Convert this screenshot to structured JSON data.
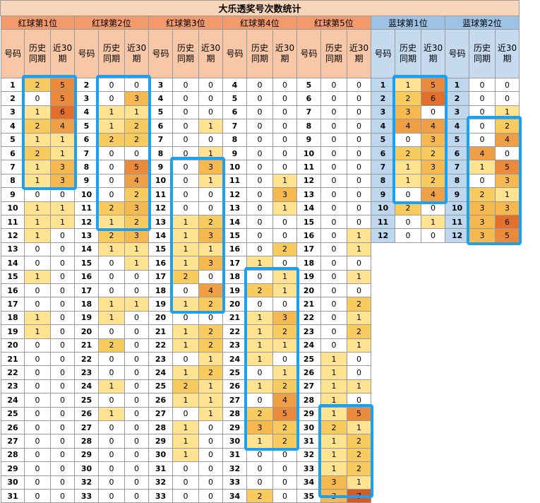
{
  "title": "大乐透奖号次数统计",
  "sub_headers": [
    "号码",
    "历史\n同期",
    "近30\n期"
  ],
  "colors": {
    "red_group_header": "#f49a6a",
    "red_sub_header": "#f8c7a8",
    "blue_group_header": "#9cc2e5",
    "blue_sub_header": "#c5d9ef",
    "blue_number_cell": "#bdd7ee",
    "heat_1": "#ffe391",
    "heat_2": "#f8cb5f",
    "heat_3": "#f5b94f",
    "heat_4": "#ef9f45",
    "heat_5": "#ea8a3a",
    "heat_6": "#e26f2b",
    "heat_7": "#d85a22",
    "highlight_box": "#1aa1f4"
  },
  "groups": [
    {
      "name": "红球第1位",
      "type": "red",
      "rows": [
        [
          "1",
          "2",
          "5"
        ],
        [
          "2",
          "0",
          "5"
        ],
        [
          "3",
          "1",
          "6"
        ],
        [
          "4",
          "2",
          "4"
        ],
        [
          "5",
          "1",
          "1"
        ],
        [
          "6",
          "2",
          "1"
        ],
        [
          "7",
          "1",
          "3"
        ],
        [
          "8",
          "1",
          "3"
        ],
        [
          "9",
          "0",
          "0"
        ],
        [
          "10",
          "1",
          "1"
        ],
        [
          "11",
          "1",
          "1"
        ],
        [
          "12",
          "1",
          "0"
        ],
        [
          "13",
          "0",
          "0"
        ],
        [
          "14",
          "0",
          "0"
        ],
        [
          "15",
          "1",
          "0"
        ],
        [
          "16",
          "0",
          "0"
        ],
        [
          "17",
          "0",
          "0"
        ],
        [
          "18",
          "1",
          "0"
        ],
        [
          "19",
          "1",
          "0"
        ],
        [
          "20",
          "0",
          "0"
        ],
        [
          "21",
          "0",
          "0"
        ],
        [
          "22",
          "0",
          "0"
        ],
        [
          "23",
          "0",
          "0"
        ],
        [
          "24",
          "0",
          "0"
        ],
        [
          "25",
          "0",
          "0"
        ],
        [
          "26",
          "0",
          "0"
        ],
        [
          "27",
          "0",
          "0"
        ],
        [
          "28",
          "0",
          "0"
        ],
        [
          "29",
          "0",
          "0"
        ],
        [
          "30",
          "0",
          "0"
        ],
        [
          "31",
          "0",
          "0"
        ]
      ]
    },
    {
      "name": "红球第2位",
      "type": "red",
      "rows": [
        [
          "2",
          "0",
          "0"
        ],
        [
          "3",
          "0",
          "3"
        ],
        [
          "4",
          "1",
          "1"
        ],
        [
          "5",
          "1",
          "2"
        ],
        [
          "6",
          "2",
          "2"
        ],
        [
          "7",
          "0",
          "0"
        ],
        [
          "8",
          "0",
          "5"
        ],
        [
          "9",
          "0",
          "4"
        ],
        [
          "10",
          "0",
          "2"
        ],
        [
          "11",
          "2",
          "3"
        ],
        [
          "12",
          "1",
          "2"
        ],
        [
          "13",
          "2",
          "3"
        ],
        [
          "14",
          "1",
          "1"
        ],
        [
          "15",
          "0",
          "1"
        ],
        [
          "16",
          "0",
          "0"
        ],
        [
          "17",
          "0",
          "0"
        ],
        [
          "18",
          "1",
          "1"
        ],
        [
          "19",
          "1",
          "0"
        ],
        [
          "20",
          "0",
          "0"
        ],
        [
          "21",
          "2",
          "0"
        ],
        [
          "22",
          "0",
          "0"
        ],
        [
          "23",
          "0",
          "0"
        ],
        [
          "24",
          "1",
          "0"
        ],
        [
          "25",
          "0",
          "0"
        ],
        [
          "26",
          "1",
          "0"
        ],
        [
          "27",
          "0",
          "0"
        ],
        [
          "28",
          "0",
          "0"
        ],
        [
          "29",
          "0",
          "0"
        ],
        [
          "30",
          "0",
          "0"
        ],
        [
          "32",
          "0",
          "0"
        ],
        [
          "33",
          "0",
          "0"
        ]
      ]
    },
    {
      "name": "红球第3位",
      "type": "red",
      "rows": [
        [
          "3",
          "0",
          "0"
        ],
        [
          "4",
          "0",
          "0"
        ],
        [
          "5",
          "0",
          "0"
        ],
        [
          "6",
          "0",
          "1"
        ],
        [
          "7",
          "0",
          "0"
        ],
        [
          "8",
          "0",
          "1"
        ],
        [
          "9",
          "0",
          "3"
        ],
        [
          "10",
          "0",
          "1"
        ],
        [
          "11",
          "0",
          "0"
        ],
        [
          "12",
          "0",
          "0"
        ],
        [
          "13",
          "1",
          "2"
        ],
        [
          "14",
          "1",
          "3"
        ],
        [
          "15",
          "1",
          "1"
        ],
        [
          "16",
          "1",
          "3"
        ],
        [
          "17",
          "2",
          "0"
        ],
        [
          "18",
          "0",
          "4"
        ],
        [
          "19",
          "1",
          "2"
        ],
        [
          "20",
          "0",
          "0"
        ],
        [
          "21",
          "1",
          "2"
        ],
        [
          "22",
          "1",
          "2"
        ],
        [
          "23",
          "0",
          "1"
        ],
        [
          "24",
          "1",
          "2"
        ],
        [
          "25",
          "2",
          "1"
        ],
        [
          "26",
          "1",
          "1"
        ],
        [
          "27",
          "0",
          "1"
        ],
        [
          "28",
          "1",
          "0"
        ],
        [
          "29",
          "1",
          "0"
        ],
        [
          "30",
          "1",
          "0"
        ],
        [
          "31",
          "0",
          "0"
        ],
        [
          "32",
          "0",
          "0"
        ],
        [
          "33",
          "0",
          "0"
        ]
      ]
    },
    {
      "name": "红球第4位",
      "type": "red",
      "rows": [
        [
          "4",
          "0",
          "0"
        ],
        [
          "5",
          "0",
          "0"
        ],
        [
          "6",
          "0",
          "0"
        ],
        [
          "7",
          "0",
          "0"
        ],
        [
          "8",
          "0",
          "0"
        ],
        [
          "9",
          "0",
          "0"
        ],
        [
          "10",
          "0",
          "0"
        ],
        [
          "11",
          "0",
          "1"
        ],
        [
          "12",
          "0",
          "3"
        ],
        [
          "13",
          "0",
          "1"
        ],
        [
          "14",
          "0",
          "0"
        ],
        [
          "15",
          "0",
          "0"
        ],
        [
          "16",
          "0",
          "2"
        ],
        [
          "17",
          "1",
          "0"
        ],
        [
          "18",
          "0",
          "1"
        ],
        [
          "19",
          "2",
          "1"
        ],
        [
          "20",
          "0",
          "0"
        ],
        [
          "21",
          "1",
          "3"
        ],
        [
          "22",
          "1",
          "2"
        ],
        [
          "23",
          "1",
          "1"
        ],
        [
          "24",
          "1",
          "0"
        ],
        [
          "25",
          "0",
          "1"
        ],
        [
          "26",
          "1",
          "2"
        ],
        [
          "27",
          "0",
          "4"
        ],
        [
          "28",
          "2",
          "5"
        ],
        [
          "29",
          "3",
          "2"
        ],
        [
          "30",
          "1",
          "2"
        ],
        [
          "31",
          "0",
          "0"
        ],
        [
          "32",
          "0",
          "0"
        ],
        [
          "33",
          "0",
          "0"
        ],
        [
          "34",
          "2",
          "0"
        ]
      ]
    },
    {
      "name": "红球第5位",
      "type": "red",
      "rows": [
        [
          "5",
          "0",
          "0"
        ],
        [
          "6",
          "0",
          "0"
        ],
        [
          "7",
          "0",
          "0"
        ],
        [
          "8",
          "0",
          "0"
        ],
        [
          "9",
          "0",
          "0"
        ],
        [
          "10",
          "0",
          "0"
        ],
        [
          "11",
          "0",
          "0"
        ],
        [
          "12",
          "0",
          "0"
        ],
        [
          "13",
          "0",
          "0"
        ],
        [
          "14",
          "0",
          "0"
        ],
        [
          "15",
          "0",
          "0"
        ],
        [
          "16",
          "0",
          "1"
        ],
        [
          "17",
          "0",
          "1"
        ],
        [
          "18",
          "0",
          "0"
        ],
        [
          "19",
          "0",
          "1"
        ],
        [
          "20",
          "0",
          "0"
        ],
        [
          "21",
          "0",
          "2"
        ],
        [
          "22",
          "0",
          "1"
        ],
        [
          "23",
          "0",
          "2"
        ],
        [
          "24",
          "0",
          "1"
        ],
        [
          "25",
          "1",
          "0"
        ],
        [
          "26",
          "1",
          "0"
        ],
        [
          "27",
          "1",
          "1"
        ],
        [
          "28",
          "1",
          "0"
        ],
        [
          "29",
          "1",
          "5"
        ],
        [
          "30",
          "2",
          "1"
        ],
        [
          "31",
          "1",
          "2"
        ],
        [
          "32",
          "1",
          "2"
        ],
        [
          "33",
          "1",
          "2"
        ],
        [
          "34",
          "3",
          "1"
        ],
        [
          "35",
          "3",
          "7"
        ]
      ]
    },
    {
      "name": "蓝球第1位",
      "type": "blue",
      "rows": [
        [
          "1",
          "1",
          "5"
        ],
        [
          "2",
          "2",
          "6"
        ],
        [
          "3",
          "3",
          "0"
        ],
        [
          "4",
          "4",
          "4"
        ],
        [
          "5",
          "0",
          "3"
        ],
        [
          "6",
          "2",
          "2"
        ],
        [
          "7",
          "1",
          "3"
        ],
        [
          "8",
          "1",
          "2"
        ],
        [
          "9",
          "0",
          "4"
        ],
        [
          "10",
          "2",
          "0"
        ],
        [
          "11",
          "0",
          "1"
        ],
        [
          "12",
          "0",
          "0"
        ]
      ]
    },
    {
      "name": "蓝球第2位",
      "type": "blue",
      "rows": [
        [
          "1",
          "0",
          "0"
        ],
        [
          "2",
          "0",
          "0"
        ],
        [
          "3",
          "0",
          "1"
        ],
        [
          "4",
          "0",
          "2"
        ],
        [
          "5",
          "0",
          "4"
        ],
        [
          "6",
          "4",
          "0"
        ],
        [
          "7",
          "1",
          "5"
        ],
        [
          "8",
          "0",
          "3"
        ],
        [
          "9",
          "2",
          "1"
        ],
        [
          "10",
          "3",
          "3"
        ],
        [
          "11",
          "3",
          "6"
        ],
        [
          "12",
          "3",
          "5"
        ]
      ]
    }
  ],
  "highlight_boxes": [
    {
      "group": 0,
      "first_row": 1,
      "last_row": 8
    },
    {
      "group": 1,
      "first_row": 2,
      "last_row": 12
    },
    {
      "group": 2,
      "first_row": 9,
      "last_row": 19
    },
    {
      "group": 3,
      "first_row": 18,
      "last_row": 30
    },
    {
      "group": 4,
      "first_row": 29,
      "last_row": 35
    },
    {
      "group": 5,
      "first_row": 1,
      "last_row": 9
    },
    {
      "group": 6,
      "first_row": 4,
      "last_row": 12
    }
  ]
}
